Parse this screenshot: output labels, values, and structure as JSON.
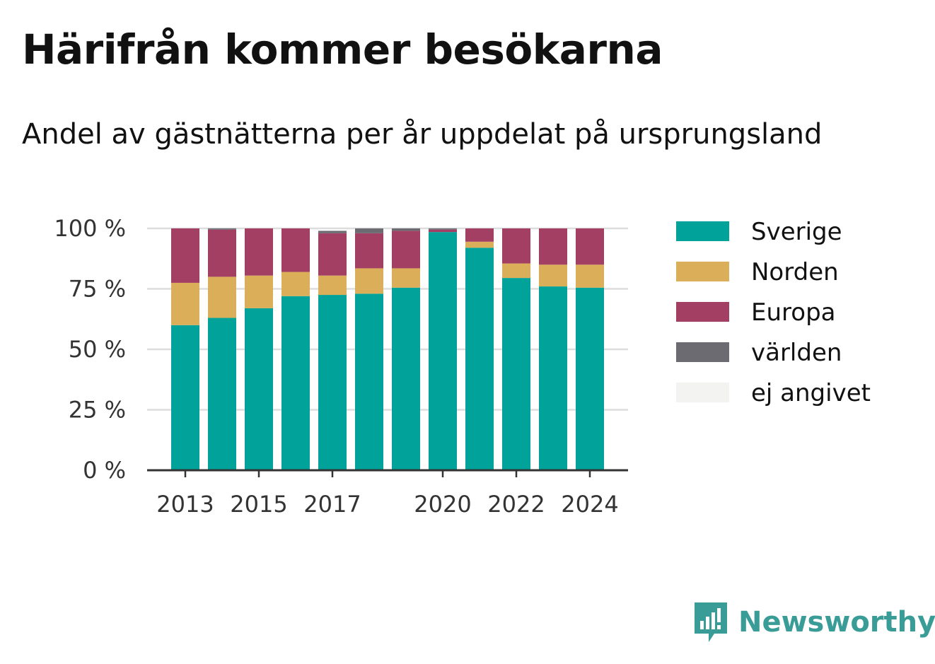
{
  "header": {
    "title": "Härifrån kommer besökarna",
    "subtitle": "Andel av gästnätterna per år uppdelat på ursprungsland"
  },
  "brand": {
    "name": "Newsworthy",
    "icon": "newsworthy-logo-icon",
    "color": "#3a9c97"
  },
  "chart_data": {
    "type": "bar",
    "stacked": true,
    "categories": [
      2013,
      2014,
      2015,
      2016,
      2017,
      2018,
      2019,
      2020,
      2021,
      2022,
      2023,
      2024
    ],
    "x_tick_labels": [
      "2013",
      "2015",
      "2017",
      "2020",
      "2022",
      "2024"
    ],
    "y_ticks": [
      0,
      25,
      50,
      75,
      100
    ],
    "y_tick_labels": [
      "0 %",
      "25 %",
      "50 %",
      "75 %",
      "100 %"
    ],
    "ylim": [
      0,
      100
    ],
    "grid": true,
    "legend_position": "right",
    "series": [
      {
        "name": "Sverige",
        "color": "#00a29a",
        "values": [
          60,
          63,
          67,
          72,
          72.5,
          73,
          75.5,
          98.5,
          92,
          79.5,
          76,
          75.5
        ]
      },
      {
        "name": "Norden",
        "color": "#dbae59",
        "values": [
          17.5,
          17,
          13.5,
          10,
          8,
          10.5,
          8,
          0,
          2.5,
          6,
          9,
          9.5
        ]
      },
      {
        "name": "Europa",
        "color": "#a43f64",
        "values": [
          22.5,
          19.5,
          19.5,
          18,
          17.5,
          14.5,
          15.5,
          1,
          5.5,
          14.5,
          15,
          15
        ]
      },
      {
        "name": "världen",
        "color": "#6b6b71",
        "values": [
          0,
          0.5,
          0,
          0,
          1,
          2,
          1,
          0.5,
          0,
          0,
          0,
          0
        ]
      },
      {
        "name": "ej angivet",
        "color": "#f3f3f1",
        "values": [
          0,
          0,
          0,
          0,
          0,
          0,
          0,
          0,
          0,
          0,
          0,
          0
        ]
      }
    ]
  }
}
